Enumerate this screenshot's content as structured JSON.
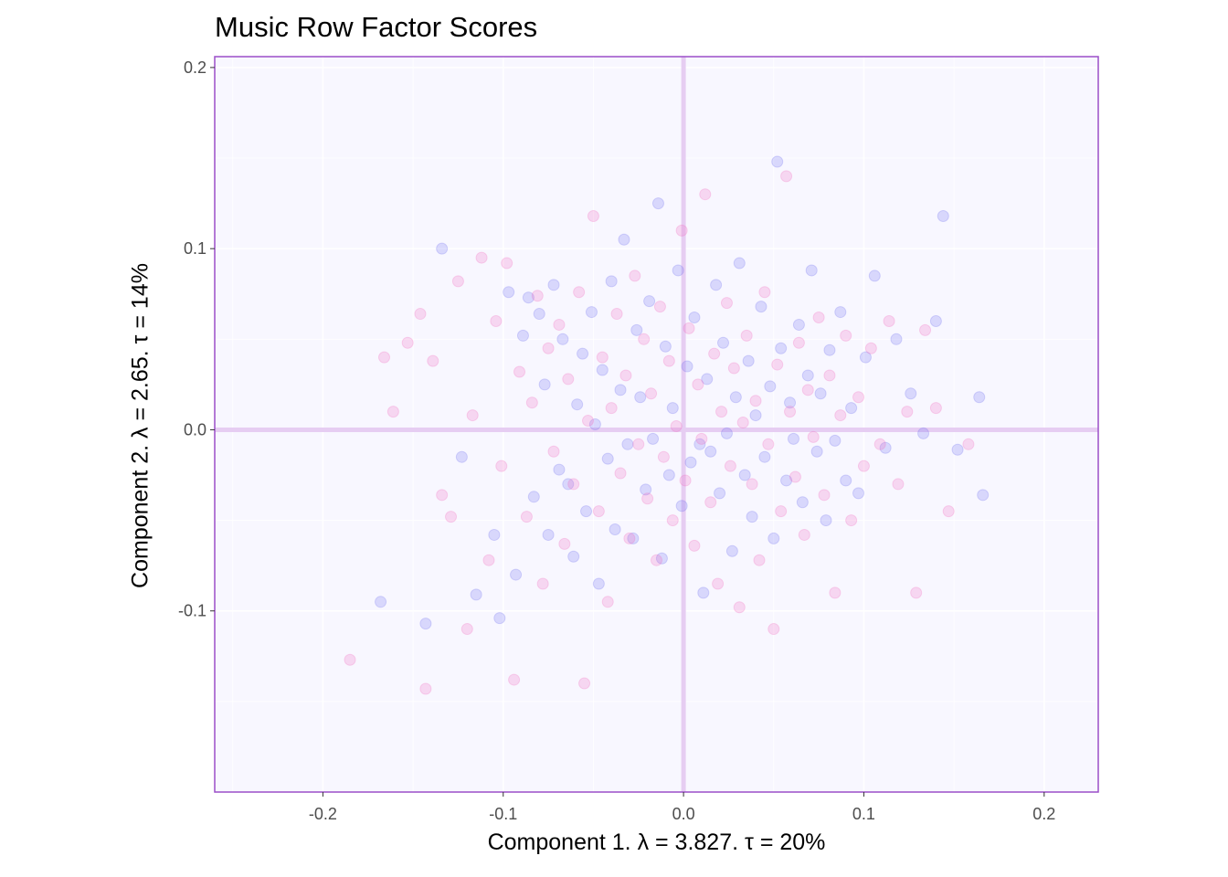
{
  "chart_data": {
    "type": "scatter",
    "title": "Music Row Factor Scores",
    "xlabel": "Component 1.   λ = 3.827.  τ = 20%",
    "ylabel": "Component 2.   λ = 2.65.  τ = 14%",
    "xlim": [
      -0.26,
      0.23
    ],
    "ylim": [
      -0.2,
      0.206
    ],
    "x_ticks": [
      -0.2,
      -0.1,
      0.0,
      0.1,
      0.2
    ],
    "x_tick_labels": [
      "-0.2",
      "-0.1",
      "0.0",
      "0.1",
      "0.2"
    ],
    "y_ticks": [
      -0.1,
      0.0,
      0.1,
      0.2
    ],
    "y_tick_labels": [
      "-0.1",
      "0.0",
      "0.1",
      "0.2"
    ],
    "grid": true,
    "reference_lines": {
      "x": 0,
      "y": 0,
      "color": "#e6cdf2"
    },
    "legend": "none",
    "colors": {
      "panel_background": "#f8f7ff",
      "panel_border": "#9b4fc9",
      "grid": "#ffffff",
      "axis_text": "#4d4d4d"
    },
    "series": [
      {
        "color": "#6b6bf0",
        "points": [
          [
            -0.168,
            -0.095
          ],
          [
            -0.143,
            -0.107
          ],
          [
            -0.134,
            0.1
          ],
          [
            -0.123,
            -0.015
          ],
          [
            -0.115,
            -0.091
          ],
          [
            -0.105,
            -0.058
          ],
          [
            -0.102,
            -0.104
          ],
          [
            -0.097,
            0.076
          ],
          [
            -0.093,
            -0.08
          ],
          [
            -0.089,
            0.052
          ],
          [
            -0.086,
            0.073
          ],
          [
            -0.083,
            -0.037
          ],
          [
            -0.08,
            0.064
          ],
          [
            -0.077,
            0.025
          ],
          [
            -0.075,
            -0.058
          ],
          [
            -0.072,
            0.08
          ],
          [
            -0.069,
            -0.022
          ],
          [
            -0.067,
            0.05
          ],
          [
            -0.064,
            -0.03
          ],
          [
            -0.061,
            -0.07
          ],
          [
            -0.059,
            0.014
          ],
          [
            -0.056,
            0.042
          ],
          [
            -0.054,
            -0.045
          ],
          [
            -0.051,
            0.065
          ],
          [
            -0.049,
            0.003
          ],
          [
            -0.047,
            -0.085
          ],
          [
            -0.045,
            0.033
          ],
          [
            -0.042,
            -0.016
          ],
          [
            -0.04,
            0.082
          ],
          [
            -0.038,
            -0.055
          ],
          [
            -0.035,
            0.022
          ],
          [
            -0.033,
            0.105
          ],
          [
            -0.031,
            -0.008
          ],
          [
            -0.028,
            -0.06
          ],
          [
            -0.026,
            0.055
          ],
          [
            -0.024,
            0.018
          ],
          [
            -0.021,
            -0.033
          ],
          [
            -0.019,
            0.071
          ],
          [
            -0.017,
            -0.005
          ],
          [
            -0.014,
            0.125
          ],
          [
            -0.012,
            -0.071
          ],
          [
            -0.01,
            0.046
          ],
          [
            -0.008,
            -0.025
          ],
          [
            -0.006,
            0.012
          ],
          [
            -0.003,
            0.088
          ],
          [
            -0.001,
            -0.042
          ],
          [
            0.002,
            0.035
          ],
          [
            0.004,
            -0.018
          ],
          [
            0.006,
            0.062
          ],
          [
            0.009,
            -0.008
          ],
          [
            0.011,
            -0.09
          ],
          [
            0.013,
            0.028
          ],
          [
            0.015,
            -0.012
          ],
          [
            0.018,
            0.08
          ],
          [
            0.02,
            -0.035
          ],
          [
            0.022,
            0.048
          ],
          [
            0.024,
            -0.002
          ],
          [
            0.027,
            -0.067
          ],
          [
            0.029,
            0.018
          ],
          [
            0.031,
            0.092
          ],
          [
            0.034,
            -0.025
          ],
          [
            0.036,
            0.038
          ],
          [
            0.038,
            -0.048
          ],
          [
            0.04,
            0.008
          ],
          [
            0.043,
            0.068
          ],
          [
            0.045,
            -0.015
          ],
          [
            0.048,
            0.024
          ],
          [
            0.05,
            -0.06
          ],
          [
            0.052,
            0.148
          ],
          [
            0.054,
            0.045
          ],
          [
            0.057,
            -0.028
          ],
          [
            0.059,
            0.015
          ],
          [
            0.061,
            -0.005
          ],
          [
            0.064,
            0.058
          ],
          [
            0.066,
            -0.04
          ],
          [
            0.069,
            0.03
          ],
          [
            0.071,
            0.088
          ],
          [
            0.074,
            -0.012
          ],
          [
            0.076,
            0.02
          ],
          [
            0.079,
            -0.05
          ],
          [
            0.081,
            0.044
          ],
          [
            0.084,
            -0.006
          ],
          [
            0.087,
            0.065
          ],
          [
            0.09,
            -0.028
          ],
          [
            0.093,
            0.012
          ],
          [
            0.097,
            -0.035
          ],
          [
            0.101,
            0.04
          ],
          [
            0.106,
            0.085
          ],
          [
            0.112,
            -0.01
          ],
          [
            0.118,
            0.05
          ],
          [
            0.126,
            0.02
          ],
          [
            0.133,
            -0.002
          ],
          [
            0.14,
            0.06
          ],
          [
            0.144,
            0.118
          ],
          [
            0.152,
            -0.011
          ],
          [
            0.164,
            0.018
          ],
          [
            0.166,
            -0.036
          ]
        ]
      },
      {
        "color": "#f266bd",
        "points": [
          [
            -0.185,
            -0.127
          ],
          [
            -0.166,
            0.04
          ],
          [
            -0.161,
            0.01
          ],
          [
            -0.153,
            0.048
          ],
          [
            -0.146,
            0.064
          ],
          [
            -0.143,
            -0.143
          ],
          [
            -0.139,
            0.038
          ],
          [
            -0.134,
            -0.036
          ],
          [
            -0.129,
            -0.048
          ],
          [
            -0.125,
            0.082
          ],
          [
            -0.12,
            -0.11
          ],
          [
            -0.117,
            0.008
          ],
          [
            -0.112,
            0.095
          ],
          [
            -0.108,
            -0.072
          ],
          [
            -0.104,
            0.06
          ],
          [
            -0.101,
            -0.02
          ],
          [
            -0.098,
            0.092
          ],
          [
            -0.094,
            -0.138
          ],
          [
            -0.091,
            0.032
          ],
          [
            -0.087,
            -0.048
          ],
          [
            -0.084,
            0.015
          ],
          [
            -0.081,
            0.074
          ],
          [
            -0.078,
            -0.085
          ],
          [
            -0.075,
            0.045
          ],
          [
            -0.072,
            -0.012
          ],
          [
            -0.069,
            0.058
          ],
          [
            -0.066,
            -0.063
          ],
          [
            -0.064,
            0.028
          ],
          [
            -0.061,
            -0.03
          ],
          [
            -0.058,
            0.076
          ],
          [
            -0.055,
            -0.14
          ],
          [
            -0.053,
            0.005
          ],
          [
            -0.05,
            0.118
          ],
          [
            -0.047,
            -0.045
          ],
          [
            -0.045,
            0.04
          ],
          [
            -0.042,
            -0.095
          ],
          [
            -0.04,
            0.012
          ],
          [
            -0.037,
            0.064
          ],
          [
            -0.035,
            -0.024
          ],
          [
            -0.032,
            0.03
          ],
          [
            -0.03,
            -0.06
          ],
          [
            -0.027,
            0.085
          ],
          [
            -0.025,
            -0.008
          ],
          [
            -0.022,
            0.05
          ],
          [
            -0.02,
            -0.038
          ],
          [
            -0.018,
            0.02
          ],
          [
            -0.015,
            -0.072
          ],
          [
            -0.013,
            0.068
          ],
          [
            -0.011,
            -0.015
          ],
          [
            -0.008,
            0.038
          ],
          [
            -0.006,
            -0.05
          ],
          [
            -0.004,
            0.002
          ],
          [
            -0.001,
            0.11
          ],
          [
            0.001,
            -0.028
          ],
          [
            0.003,
            0.056
          ],
          [
            0.006,
            -0.064
          ],
          [
            0.008,
            0.025
          ],
          [
            0.01,
            -0.005
          ],
          [
            0.012,
            0.13
          ],
          [
            0.015,
            -0.04
          ],
          [
            0.017,
            0.042
          ],
          [
            0.019,
            -0.085
          ],
          [
            0.021,
            0.01
          ],
          [
            0.024,
            0.07
          ],
          [
            0.026,
            -0.02
          ],
          [
            0.028,
            0.034
          ],
          [
            0.031,
            -0.098
          ],
          [
            0.033,
            0.004
          ],
          [
            0.035,
            0.052
          ],
          [
            0.038,
            -0.03
          ],
          [
            0.04,
            0.016
          ],
          [
            0.042,
            -0.072
          ],
          [
            0.045,
            0.076
          ],
          [
            0.047,
            -0.008
          ],
          [
            0.05,
            -0.11
          ],
          [
            0.052,
            0.036
          ],
          [
            0.054,
            -0.045
          ],
          [
            0.057,
            0.14
          ],
          [
            0.059,
            0.01
          ],
          [
            0.062,
            -0.026
          ],
          [
            0.064,
            0.048
          ],
          [
            0.067,
            -0.058
          ],
          [
            0.069,
            0.022
          ],
          [
            0.072,
            -0.004
          ],
          [
            0.075,
            0.062
          ],
          [
            0.078,
            -0.036
          ],
          [
            0.081,
            0.03
          ],
          [
            0.084,
            -0.09
          ],
          [
            0.087,
            0.008
          ],
          [
            0.09,
            0.052
          ],
          [
            0.093,
            -0.05
          ],
          [
            0.097,
            0.018
          ],
          [
            0.1,
            -0.02
          ],
          [
            0.104,
            0.045
          ],
          [
            0.109,
            -0.008
          ],
          [
            0.114,
            0.06
          ],
          [
            0.119,
            -0.03
          ],
          [
            0.124,
            0.01
          ],
          [
            0.129,
            -0.09
          ],
          [
            0.134,
            0.055
          ],
          [
            0.14,
            0.012
          ],
          [
            0.147,
            -0.045
          ],
          [
            0.158,
            -0.008
          ]
        ]
      }
    ]
  }
}
